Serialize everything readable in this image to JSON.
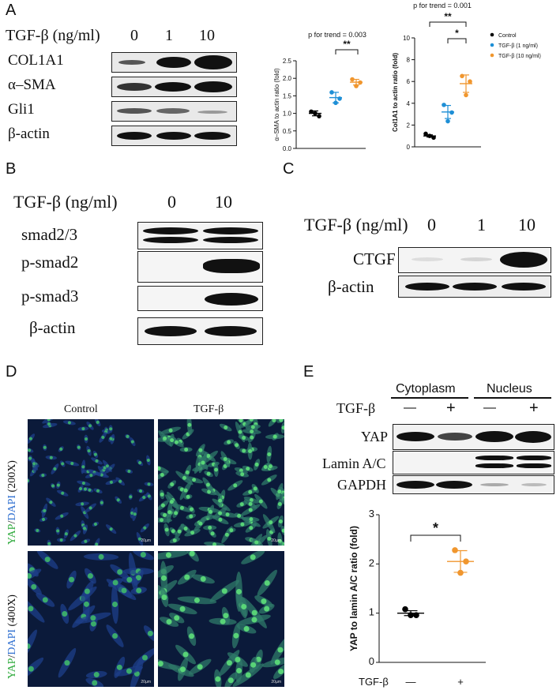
{
  "panelA": {
    "letter": "A",
    "treatment_label": "TGF-β (ng/ml)",
    "doses": [
      "0",
      "1",
      "10"
    ],
    "rows": [
      "COL1A1",
      "α–SMA",
      "Gli1",
      "β-actin"
    ]
  },
  "panelB": {
    "letter": "B",
    "treatment_label": "TGF-β (ng/ml)",
    "doses": [
      "0",
      "10"
    ],
    "rows": [
      "smad2/3",
      "p-smad2",
      "p-smad3",
      "β-actin"
    ]
  },
  "panelC": {
    "letter": "C",
    "treatment_label": "TGF-β (ng/ml)",
    "doses": [
      "0",
      "1",
      "10"
    ],
    "rows": [
      "CTGF",
      "β-actin"
    ]
  },
  "panelD": {
    "letter": "D",
    "col_labels": [
      "Control",
      "TGF-β"
    ],
    "row_labels": [
      {
        "yap": "YAP",
        "slash": "/",
        "dapi": "DAPI",
        "mag": " (200X)"
      },
      {
        "yap": "YAP",
        "slash": "/",
        "dapi": "DAPI",
        "mag": " (400X)"
      }
    ],
    "scale_bar": "20µm"
  },
  "panelE": {
    "letter": "E",
    "fractions": [
      "Cytoplasm",
      "Nucleus"
    ],
    "treatment_label": "TGF-β",
    "signs": [
      "—",
      "+",
      "—",
      "+"
    ],
    "rows": [
      "YAP",
      "Lamin A/C",
      "GAPDH"
    ]
  },
  "chart_data": [
    {
      "type": "scatter",
      "title": "p for trend = 0.003",
      "ylabel": "α–SMA to actin ratio (fold)",
      "ylim": [
        0,
        2.5
      ],
      "yticks": [
        "0.0",
        "0.5",
        "1.0",
        "1.5",
        "2.0",
        "2.5"
      ],
      "significance": "**",
      "colors": [
        "#000000",
        "#1e8fd6",
        "#f0962e"
      ],
      "groups": [
        {
          "points": [
            1.05,
            0.92,
            1.0
          ],
          "mean": 1.0,
          "sem": 0.07
        },
        {
          "points": [
            1.6,
            1.42,
            1.3
          ],
          "mean": 1.45,
          "sem": 0.15
        },
        {
          "points": [
            1.97,
            1.88,
            1.78
          ],
          "mean": 1.89,
          "sem": 0.08
        }
      ]
    },
    {
      "type": "scatter",
      "title": "p for trend = 0.001",
      "ylabel": "Col1A1 to actin ratio (fold)",
      "ylim": [
        0,
        10
      ],
      "yticks": [
        "0",
        "2",
        "4",
        "6",
        "8",
        "10"
      ],
      "significance": [
        "**",
        "*"
      ],
      "colors": [
        "#000000",
        "#1e8fd6",
        "#f0962e"
      ],
      "legend": [
        "Control",
        "TGF-β (1 ng/ml)",
        "TGF-β (10 ng/ml)"
      ],
      "groups": [
        {
          "points": [
            1.2,
            0.85,
            1.0
          ],
          "mean": 1.0,
          "sem": 0.1
        },
        {
          "points": [
            3.85,
            3.15,
            2.35
          ],
          "mean": 3.2,
          "sem": 0.6
        },
        {
          "points": [
            6.5,
            6.0,
            4.75
          ],
          "mean": 5.8,
          "sem": 0.8
        }
      ]
    },
    {
      "type": "scatter",
      "ylabel": "YAP to lamin A/C ratio (fold)",
      "ylim": [
        0,
        3
      ],
      "yticks": [
        "0",
        "1",
        "2",
        "3"
      ],
      "significance": "*",
      "xlabel": "TGF-β",
      "categories": [
        "—",
        "+"
      ],
      "colors": [
        "#000000",
        "#f0962e"
      ],
      "groups": [
        {
          "points": [
            1.08,
            0.96,
            0.96
          ],
          "mean": 1.0,
          "sem": 0.05
        },
        {
          "points": [
            2.28,
            2.05,
            1.82
          ],
          "mean": 2.05,
          "sem": 0.22
        }
      ]
    }
  ]
}
